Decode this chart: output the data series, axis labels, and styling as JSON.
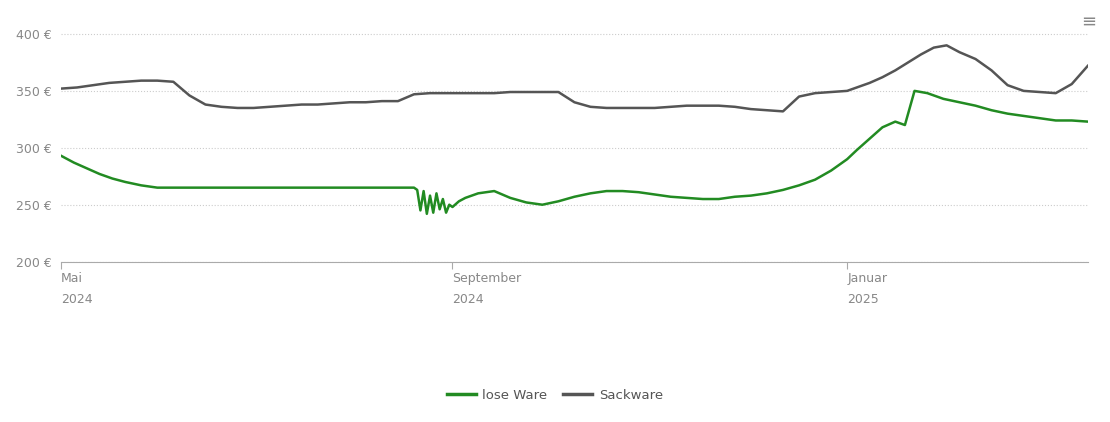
{
  "background_color": "#ffffff",
  "grid_color": "#cccccc",
  "ylim": [
    200,
    415
  ],
  "yticks": [
    200,
    250,
    300,
    350,
    400
  ],
  "ytick_labels": [
    "200 €",
    "250 €",
    "300 €",
    "350 €",
    "400 €"
  ],
  "xtick_labels": [
    "Mai\n2024",
    "September\n2024",
    "Januar\n2025"
  ],
  "xtick_positions": [
    0,
    122,
    245
  ],
  "legend_labels": [
    "lose Ware",
    "Sackware"
  ],
  "legend_colors": [
    "#228B22",
    "#555555"
  ],
  "lose_ware_x": [
    0,
    4,
    8,
    12,
    16,
    20,
    25,
    30,
    35,
    40,
    45,
    50,
    55,
    60,
    65,
    70,
    75,
    80,
    85,
    90,
    95,
    100,
    105,
    110,
    111,
    112,
    113,
    114,
    115,
    116,
    117,
    118,
    119,
    120,
    121,
    122,
    124,
    126,
    128,
    130,
    135,
    140,
    145,
    150,
    155,
    160,
    165,
    170,
    175,
    180,
    185,
    190,
    195,
    200,
    205,
    210,
    215,
    220,
    225,
    230,
    235,
    240,
    245,
    248,
    252,
    256,
    260,
    263,
    266,
    270,
    275,
    280,
    285,
    290,
    295,
    300,
    305,
    310,
    315,
    320
  ],
  "lose_ware_y": [
    293,
    287,
    282,
    277,
    273,
    270,
    267,
    265,
    265,
    265,
    265,
    265,
    265,
    265,
    265,
    265,
    265,
    265,
    265,
    265,
    265,
    265,
    265,
    265,
    263,
    245,
    262,
    242,
    258,
    243,
    260,
    246,
    255,
    243,
    250,
    248,
    253,
    256,
    258,
    260,
    262,
    256,
    252,
    250,
    253,
    257,
    260,
    262,
    262,
    261,
    259,
    257,
    256,
    255,
    255,
    257,
    258,
    260,
    263,
    267,
    272,
    280,
    290,
    298,
    308,
    318,
    323,
    320,
    350,
    348,
    343,
    340,
    337,
    333,
    330,
    328,
    326,
    324,
    324,
    323
  ],
  "sackware_x": [
    0,
    5,
    10,
    15,
    20,
    25,
    30,
    35,
    40,
    45,
    50,
    55,
    60,
    65,
    70,
    75,
    80,
    85,
    90,
    95,
    100,
    105,
    110,
    115,
    120,
    125,
    130,
    135,
    140,
    145,
    150,
    155,
    160,
    165,
    170,
    175,
    180,
    185,
    190,
    195,
    200,
    205,
    210,
    215,
    220,
    225,
    230,
    235,
    240,
    245,
    248,
    252,
    256,
    260,
    264,
    268,
    272,
    276,
    280,
    285,
    290,
    295,
    300,
    305,
    310,
    315,
    320
  ],
  "sackware_y": [
    352,
    353,
    355,
    357,
    358,
    359,
    359,
    358,
    346,
    338,
    336,
    335,
    335,
    336,
    337,
    338,
    338,
    339,
    340,
    340,
    341,
    341,
    347,
    348,
    348,
    348,
    348,
    348,
    349,
    349,
    349,
    349,
    340,
    336,
    335,
    335,
    335,
    335,
    336,
    337,
    337,
    337,
    336,
    334,
    333,
    332,
    345,
    348,
    349,
    350,
    353,
    357,
    362,
    368,
    375,
    382,
    388,
    390,
    384,
    378,
    368,
    355,
    350,
    349,
    348,
    356,
    372
  ]
}
